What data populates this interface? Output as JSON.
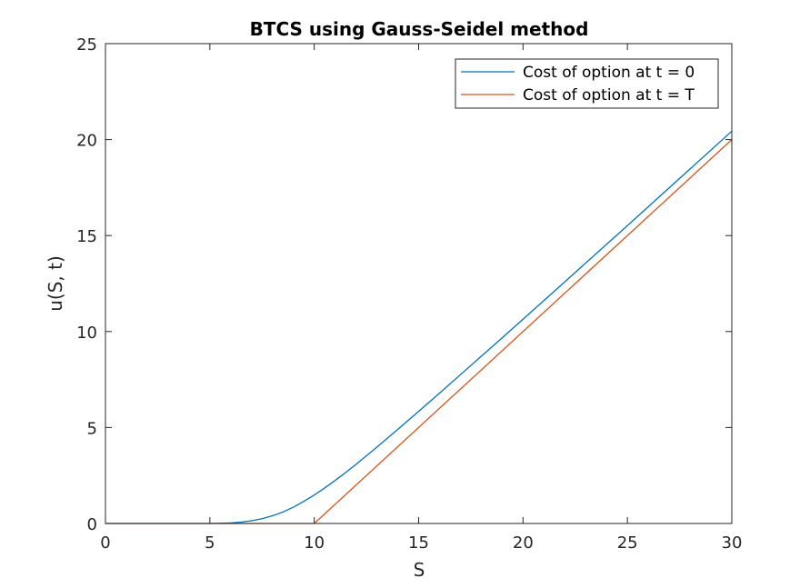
{
  "chart_data": {
    "type": "line",
    "title": "BTCS using Gauss-Seidel method",
    "xlabel": "S",
    "ylabel": "u(S, t)",
    "xlim": [
      0,
      30
    ],
    "ylim": [
      0,
      25
    ],
    "xticks": [
      0,
      5,
      10,
      15,
      20,
      25,
      30
    ],
    "yticks": [
      0,
      5,
      10,
      15,
      20,
      25
    ],
    "grid": false,
    "legend_position": "top-right",
    "series": [
      {
        "name": "Cost of option at t = 0",
        "color": "#0072BD",
        "x": [
          0,
          5,
          5.5,
          6,
          6.5,
          7,
          7.5,
          8,
          8.5,
          9,
          9.5,
          10,
          10.5,
          11,
          11.5,
          12,
          13,
          14,
          15,
          16,
          17,
          18,
          19,
          20,
          22,
          24,
          26,
          28,
          30
        ],
        "y": [
          0,
          0,
          0.01,
          0.03,
          0.07,
          0.14,
          0.25,
          0.4,
          0.6,
          0.85,
          1.15,
          1.48,
          1.85,
          2.24,
          2.65,
          3.08,
          3.98,
          4.9,
          5.84,
          6.79,
          7.75,
          8.71,
          9.67,
          10.64,
          12.59,
          14.54,
          16.5,
          18.47,
          20.44
        ]
      },
      {
        "name": "Cost of option at t = T",
        "color": "#D95319",
        "x": [
          0,
          10,
          30
        ],
        "y": [
          0,
          0,
          20
        ]
      }
    ]
  }
}
